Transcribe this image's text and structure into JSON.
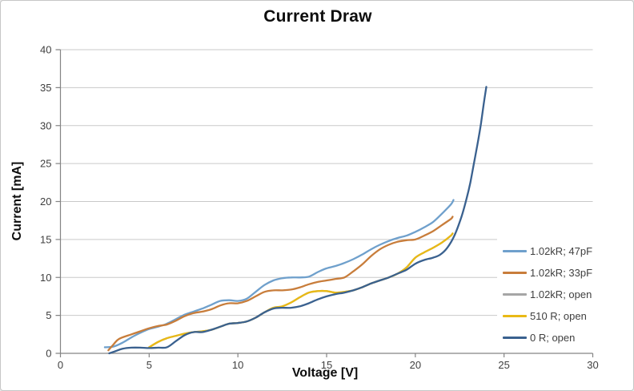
{
  "chart_data": {
    "type": "line",
    "title": "Current Draw",
    "xlabel": "Voltage [V]",
    "ylabel": "Current [mA]",
    "xlim": [
      0,
      30
    ],
    "ylim": [
      0,
      40
    ],
    "xticks": [
      0,
      5,
      10,
      15,
      20,
      25,
      30
    ],
    "yticks": [
      0,
      5,
      10,
      15,
      20,
      25,
      30,
      35,
      40
    ],
    "grid": "horizontal-only",
    "legend_position": "right, overlapping plot area, white background, no border",
    "colors": {
      "gridline": "#c9c9c9",
      "axis": "#848484",
      "tick_text": "#3f3f3f",
      "title_text": "#0d0d0d",
      "border": "#c6c6c6",
      "background": "#ffffff"
    },
    "series": [
      {
        "name": "1.02kR; 47pF",
        "color": "#6FA0CC",
        "points": [
          [
            2.5,
            0.8
          ],
          [
            3.0,
            0.9
          ],
          [
            3.5,
            1.4
          ],
          [
            4.0,
            2.1
          ],
          [
            4.5,
            2.7
          ],
          [
            5.0,
            3.2
          ],
          [
            5.5,
            3.5
          ],
          [
            6.0,
            3.9
          ],
          [
            6.5,
            4.5
          ],
          [
            7.0,
            5.1
          ],
          [
            7.5,
            5.5
          ],
          [
            8.0,
            5.9
          ],
          [
            8.5,
            6.4
          ],
          [
            9.0,
            6.9
          ],
          [
            9.5,
            7.0
          ],
          [
            10.0,
            6.9
          ],
          [
            10.5,
            7.2
          ],
          [
            11.0,
            8.1
          ],
          [
            11.5,
            9.0
          ],
          [
            12.0,
            9.6
          ],
          [
            12.5,
            9.9
          ],
          [
            13.0,
            10.0
          ],
          [
            13.5,
            10.0
          ],
          [
            14.0,
            10.1
          ],
          [
            14.5,
            10.7
          ],
          [
            15.0,
            11.2
          ],
          [
            15.5,
            11.5
          ],
          [
            16.0,
            11.9
          ],
          [
            16.5,
            12.4
          ],
          [
            17.0,
            13.0
          ],
          [
            17.5,
            13.7
          ],
          [
            18.0,
            14.3
          ],
          [
            18.5,
            14.8
          ],
          [
            19.0,
            15.2
          ],
          [
            19.5,
            15.5
          ],
          [
            20.0,
            16.0
          ],
          [
            20.5,
            16.6
          ],
          [
            21.0,
            17.3
          ],
          [
            21.5,
            18.4
          ],
          [
            22.0,
            19.6
          ],
          [
            22.15,
            20.2
          ]
        ]
      },
      {
        "name": "1.02kR; 33pF",
        "color": "#C87D3B",
        "points": [
          [
            2.7,
            0.4
          ],
          [
            3.0,
            1.2
          ],
          [
            3.3,
            1.9
          ],
          [
            4.0,
            2.5
          ],
          [
            4.5,
            2.9
          ],
          [
            5.0,
            3.3
          ],
          [
            5.5,
            3.6
          ],
          [
            6.0,
            3.8
          ],
          [
            6.5,
            4.3
          ],
          [
            7.0,
            4.9
          ],
          [
            7.5,
            5.3
          ],
          [
            8.0,
            5.5
          ],
          [
            8.5,
            5.8
          ],
          [
            9.0,
            6.3
          ],
          [
            9.5,
            6.6
          ],
          [
            10.0,
            6.6
          ],
          [
            10.5,
            6.9
          ],
          [
            11.0,
            7.5
          ],
          [
            11.5,
            8.1
          ],
          [
            12.0,
            8.3
          ],
          [
            12.5,
            8.3
          ],
          [
            13.0,
            8.4
          ],
          [
            13.5,
            8.7
          ],
          [
            14.0,
            9.1
          ],
          [
            14.5,
            9.4
          ],
          [
            15.0,
            9.6
          ],
          [
            15.5,
            9.8
          ],
          [
            16.0,
            10.0
          ],
          [
            16.5,
            10.8
          ],
          [
            17.0,
            11.7
          ],
          [
            17.5,
            12.8
          ],
          [
            18.0,
            13.7
          ],
          [
            18.5,
            14.3
          ],
          [
            19.0,
            14.7
          ],
          [
            19.5,
            14.9
          ],
          [
            20.0,
            15.0
          ],
          [
            20.5,
            15.5
          ],
          [
            21.0,
            16.1
          ],
          [
            21.5,
            16.9
          ],
          [
            22.0,
            17.7
          ],
          [
            22.1,
            18.0
          ]
        ]
      },
      {
        "name": "1.02kR; open",
        "color": "#A6A6A6",
        "hidden_behind_other_series": true,
        "points": [
          [
            5.0,
            0.8
          ],
          [
            5.5,
            1.5
          ],
          [
            6.0,
            2.0
          ],
          [
            6.5,
            2.3
          ],
          [
            7.0,
            2.6
          ],
          [
            7.5,
            2.8
          ],
          [
            8.0,
            2.9
          ],
          [
            8.5,
            3.1
          ],
          [
            9.0,
            3.5
          ],
          [
            9.5,
            3.9
          ],
          [
            10.0,
            4.0
          ],
          [
            10.5,
            4.2
          ],
          [
            11.0,
            4.7
          ],
          [
            11.5,
            5.4
          ],
          [
            12.0,
            6.0
          ],
          [
            12.5,
            6.2
          ],
          [
            13.0,
            6.7
          ],
          [
            13.5,
            7.4
          ],
          [
            14.0,
            8.0
          ],
          [
            14.5,
            8.2
          ],
          [
            15.0,
            8.2
          ],
          [
            15.5,
            8.0
          ],
          [
            16.0,
            8.1
          ],
          [
            16.5,
            8.3
          ],
          [
            17.0,
            8.7
          ],
          [
            17.5,
            9.2
          ],
          [
            18.0,
            9.6
          ],
          [
            18.5,
            10.0
          ],
          [
            19.0,
            10.5
          ],
          [
            19.5,
            11.3
          ],
          [
            20.0,
            12.6
          ],
          [
            20.5,
            13.3
          ],
          [
            21.0,
            13.9
          ],
          [
            21.5,
            14.6
          ],
          [
            22.0,
            15.5
          ],
          [
            22.1,
            15.8
          ]
        ]
      },
      {
        "name": "510 R; open",
        "color": "#E9B915",
        "points": [
          [
            5.0,
            0.8
          ],
          [
            5.5,
            1.5
          ],
          [
            6.0,
            2.0
          ],
          [
            6.5,
            2.3
          ],
          [
            7.0,
            2.6
          ],
          [
            7.5,
            2.8
          ],
          [
            8.0,
            2.9
          ],
          [
            8.5,
            3.1
          ],
          [
            9.0,
            3.5
          ],
          [
            9.5,
            3.9
          ],
          [
            10.0,
            4.0
          ],
          [
            10.5,
            4.2
          ],
          [
            11.0,
            4.7
          ],
          [
            11.5,
            5.4
          ],
          [
            12.0,
            6.0
          ],
          [
            12.5,
            6.2
          ],
          [
            13.0,
            6.7
          ],
          [
            13.5,
            7.4
          ],
          [
            14.0,
            8.0
          ],
          [
            14.5,
            8.2
          ],
          [
            15.0,
            8.2
          ],
          [
            15.5,
            8.0
          ],
          [
            16.0,
            8.1
          ],
          [
            16.5,
            8.3
          ],
          [
            17.0,
            8.7
          ],
          [
            17.5,
            9.2
          ],
          [
            18.0,
            9.6
          ],
          [
            18.5,
            10.0
          ],
          [
            19.0,
            10.5
          ],
          [
            19.5,
            11.3
          ],
          [
            20.0,
            12.6
          ],
          [
            20.5,
            13.3
          ],
          [
            21.0,
            13.9
          ],
          [
            21.5,
            14.6
          ],
          [
            22.0,
            15.5
          ],
          [
            22.1,
            15.8
          ]
        ]
      },
      {
        "name": "0 R; open",
        "color": "#3A618F",
        "points": [
          [
            2.75,
            0.0
          ],
          [
            3.0,
            0.2
          ],
          [
            3.5,
            0.6
          ],
          [
            4.0,
            0.75
          ],
          [
            4.5,
            0.75
          ],
          [
            5.0,
            0.7
          ],
          [
            5.5,
            0.75
          ],
          [
            6.0,
            0.8
          ],
          [
            6.5,
            1.6
          ],
          [
            7.0,
            2.4
          ],
          [
            7.5,
            2.8
          ],
          [
            8.0,
            2.8
          ],
          [
            8.5,
            3.1
          ],
          [
            9.0,
            3.5
          ],
          [
            9.5,
            3.9
          ],
          [
            10.0,
            4.0
          ],
          [
            10.5,
            4.2
          ],
          [
            11.0,
            4.7
          ],
          [
            11.5,
            5.4
          ],
          [
            12.0,
            5.9
          ],
          [
            12.5,
            6.0
          ],
          [
            13.0,
            6.0
          ],
          [
            13.5,
            6.2
          ],
          [
            14.0,
            6.6
          ],
          [
            14.5,
            7.1
          ],
          [
            15.0,
            7.5
          ],
          [
            15.5,
            7.8
          ],
          [
            16.0,
            8.0
          ],
          [
            16.5,
            8.3
          ],
          [
            17.0,
            8.7
          ],
          [
            17.5,
            9.2
          ],
          [
            18.0,
            9.6
          ],
          [
            18.5,
            10.0
          ],
          [
            19.0,
            10.5
          ],
          [
            19.5,
            11.0
          ],
          [
            20.0,
            11.8
          ],
          [
            20.5,
            12.3
          ],
          [
            21.0,
            12.6
          ],
          [
            21.4,
            13.0
          ],
          [
            21.8,
            13.9
          ],
          [
            22.2,
            15.5
          ],
          [
            22.6,
            18.0
          ],
          [
            22.9,
            20.5
          ],
          [
            23.1,
            22.5
          ],
          [
            23.3,
            25.0
          ],
          [
            23.5,
            27.5
          ],
          [
            23.7,
            30.3
          ],
          [
            23.85,
            32.8
          ],
          [
            24.0,
            35.1
          ]
        ]
      }
    ]
  }
}
